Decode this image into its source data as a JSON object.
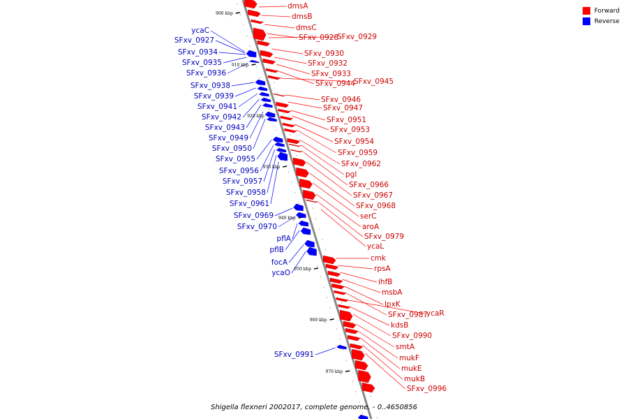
{
  "legend": {
    "forward_label": "Forward",
    "reverse_label": "Reverse",
    "forward_color": "#ff0000",
    "reverse_color": "#0000ff"
  },
  "footer": {
    "text": "Shigella flexneri 2002017, complete genome. - 0..4650856"
  },
  "map": {
    "backbone_color": "#888888",
    "ticks": [
      {
        "label": "900 kbp"
      },
      {
        "label": "910 kbp"
      },
      {
        "label": "920 kbp"
      },
      {
        "label": "930 kbp"
      },
      {
        "label": "940 kbp"
      },
      {
        "label": "950 kbp"
      },
      {
        "label": "960 kbp"
      },
      {
        "label": "970 kbp"
      }
    ],
    "forward_genes": [
      "dmsA",
      "dmsB",
      "dmsC",
      "SFxv_0928",
      "SFxv_0929",
      "SFxv_0930",
      "SFxv_0932",
      "SFxv_0933",
      "SFxv_0944",
      "SFxv_0945",
      "SFxv_0946",
      "SFxv_0947",
      "SFxv_0951",
      "SFxv_0953",
      "SFxv_0954",
      "SFxv_0959",
      "SFxv_0962",
      "pgl",
      "SFxv_0966",
      "SFxv_0967",
      "SFxv_0968",
      "serC",
      "aroA",
      "SFxv_0979",
      "ycaL",
      "cmk",
      "rpsA",
      "ihfB",
      "msbA",
      "lpxK",
      "SFxv_0987",
      "ycaR",
      "kdsB",
      "SFxv_0990",
      "smtA",
      "mukF",
      "mukE",
      "mukB",
      "SFxv_0996"
    ],
    "reverse_genes": [
      "ycaC",
      "SFxv_0927",
      "SFxv_0934",
      "SFxv_0935",
      "SFxv_0936",
      "SFxv_0938",
      "SFxv_0939",
      "SFxv_0941",
      "SFxv_0942",
      "SFxv_0943",
      "SFxv_0949",
      "SFxv_0950",
      "SFxv_0955",
      "SFxv_0956",
      "SFxv_0957",
      "SFxv_0958",
      "SFxv_0961",
      "SFxv_0969",
      "SFxv_0970",
      "pflA",
      "pflB",
      "focA",
      "ycaO",
      "SFxv_0991"
    ]
  }
}
